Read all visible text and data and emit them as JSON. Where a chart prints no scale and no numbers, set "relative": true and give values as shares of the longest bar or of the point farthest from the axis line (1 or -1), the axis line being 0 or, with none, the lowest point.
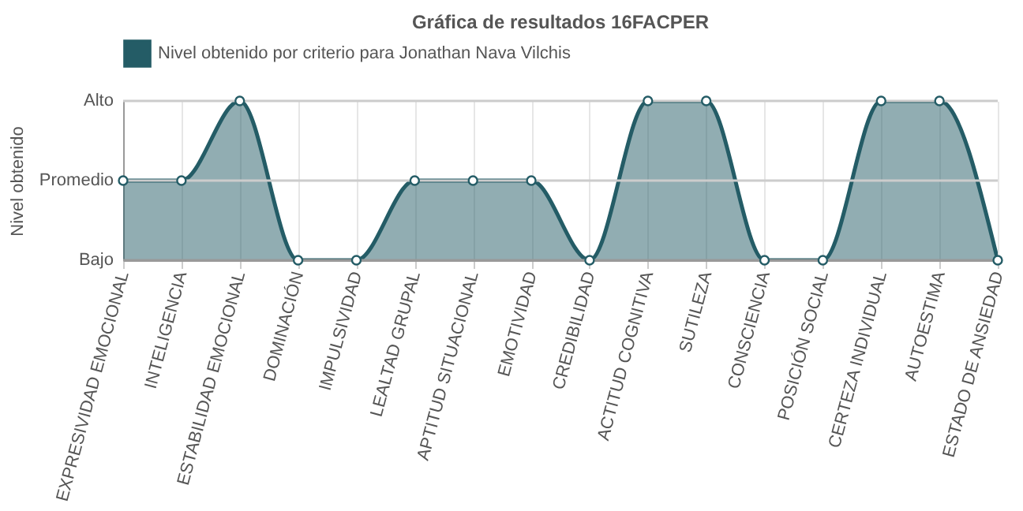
{
  "chart_data": {
    "type": "area",
    "title": "Gráfica de resultados 16FACPER",
    "ylabel": "Nivel obtenido",
    "categories": [
      "EXPRESIVIDAD EMOCIONAL",
      "INTELIGENCIA",
      "ESTABILIDAD EMOCIONAL",
      "DOMINACIÓN",
      "IMPULSIVIDAD",
      "LEALTAD GRUPAL",
      "APTITUD SITUACIONAL",
      "EMOTIVIDAD",
      "CREDIBILIDAD",
      "ACTITUD COGNITIVA",
      "SUTILEZA",
      "CONSCIENCIA",
      "POSICIÓN SOCIAL",
      "CERTEZA INDIVIDUAL",
      "AUTOESTIMA",
      "ESTADO DE ANSIEDAD"
    ],
    "relative": true,
    "series": [
      {
        "name": "Nivel obtenido por criterio para Jonathan Nava Vilchis",
        "color": "#245c66",
        "values": [
          0.5,
          0.5,
          1,
          0,
          0,
          0.5,
          0.5,
          0.5,
          0,
          1,
          1,
          0,
          0,
          1,
          1,
          0
        ]
      }
    ],
    "ref_lines": [
      {
        "axis": "y",
        "value": 0,
        "label": "Bajo",
        "color": "#999999"
      },
      {
        "axis": "y",
        "value": 0.5,
        "label": "Promedio",
        "color": "#cccccc"
      },
      {
        "axis": "y",
        "value": 1,
        "label": "Alto",
        "color": "#cccccc"
      }
    ],
    "grid": "x",
    "legend": "top",
    "marker": "circle",
    "line_style": "solid"
  }
}
